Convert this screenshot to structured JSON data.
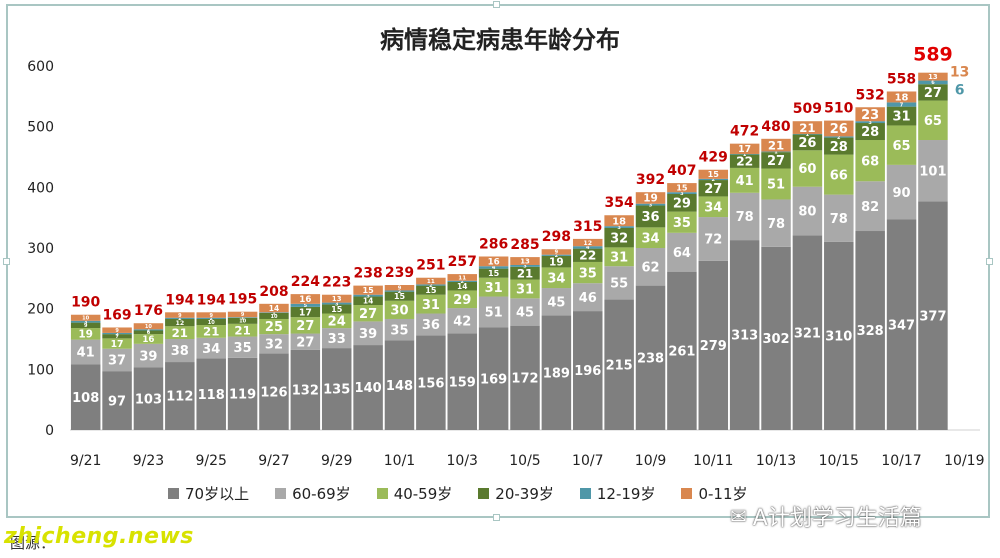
{
  "chart_data": {
    "type": "bar",
    "stacked": true,
    "title": "病情稳定病患年龄分布",
    "categories": [
      "9/21",
      "9/22",
      "9/23",
      "9/24",
      "9/25",
      "9/26",
      "9/27",
      "9/28",
      "9/29",
      "9/30",
      "10/1",
      "10/2",
      "10/3",
      "10/4",
      "10/5",
      "10/6",
      "10/7",
      "10/8",
      "10/9",
      "10/10",
      "10/11",
      "10/12",
      "10/13",
      "10/14",
      "10/15",
      "10/16",
      "10/17",
      "10/18",
      "10/19"
    ],
    "x_tick_labels": [
      "9/21",
      "9/23",
      "9/25",
      "9/27",
      "9/29",
      "10/1",
      "10/3",
      "10/5",
      "10/7",
      "10/9",
      "10/11",
      "10/13",
      "10/15",
      "10/17",
      "10/19"
    ],
    "ylim": [
      0,
      600
    ],
    "yticks": [
      0,
      100,
      200,
      300,
      400,
      500,
      600
    ],
    "grid": false,
    "legend_position": "bottom",
    "totals": [
      190,
      169,
      176,
      194,
      194,
      195,
      208,
      224,
      223,
      238,
      239,
      251,
      257,
      286,
      285,
      298,
      315,
      354,
      392,
      407,
      429,
      472,
      480,
      509,
      510,
      532,
      558,
      589,
      null
    ],
    "series": [
      {
        "name": "70岁以上",
        "color": "#7f7f7f",
        "label_color": "#ffffff",
        "values": [
          108,
          97,
          103,
          112,
          118,
          119,
          126,
          132,
          135,
          140,
          148,
          156,
          159,
          169,
          172,
          189,
          196,
          215,
          238,
          261,
          279,
          313,
          302,
          321,
          310,
          328,
          347,
          377,
          null
        ]
      },
      {
        "name": "60-69岁",
        "color": "#a9a9a9",
        "label_color": "#ffffff",
        "values": [
          41,
          37,
          39,
          38,
          34,
          35,
          32,
          27,
          33,
          39,
          35,
          36,
          42,
          51,
          45,
          45,
          46,
          55,
          62,
          64,
          72,
          78,
          78,
          80,
          78,
          82,
          90,
          101,
          null
        ]
      },
      {
        "name": "40-59岁",
        "color": "#9bbb59",
        "label_color": "#ffffff",
        "values": [
          19,
          17,
          16,
          21,
          21,
          21,
          25,
          27,
          24,
          27,
          30,
          31,
          29,
          31,
          31,
          34,
          35,
          31,
          34,
          35,
          34,
          41,
          51,
          60,
          66,
          68,
          65,
          65,
          null
        ]
      },
      {
        "name": "20-39岁",
        "color": "#5a7a2e",
        "label_color": "#ffffff",
        "values": [
          9,
          7,
          6,
          12,
          10,
          10,
          10,
          17,
          15,
          14,
          15,
          15,
          14,
          15,
          21,
          19,
          22,
          32,
          36,
          29,
          27,
          22,
          27,
          26,
          28,
          28,
          31,
          27,
          null
        ]
      },
      {
        "name": "12-19岁",
        "color": "#4f97a8",
        "label_color": "#ffffff",
        "values": [
          3,
          2,
          2,
          2,
          2,
          1,
          1,
          5,
          3,
          3,
          2,
          2,
          2,
          4,
          3,
          2,
          4,
          3,
          3,
          3,
          2,
          1,
          1,
          1,
          2,
          3,
          7,
          6,
          null
        ]
      },
      {
        "name": "0-11岁",
        "color": "#d9874f",
        "label_color": "#ffffff",
        "values": [
          10,
          9,
          10,
          9,
          9,
          9,
          14,
          16,
          13,
          15,
          9,
          11,
          11,
          16,
          13,
          9,
          12,
          18,
          19,
          15,
          15,
          17,
          21,
          21,
          26,
          23,
          18,
          13,
          null
        ]
      }
    ],
    "highlight_last": {
      "total": "589",
      "side_labels": {
        "0-11岁": "13",
        "12-19岁": "6"
      }
    }
  },
  "legend": {
    "items": [
      "70岁以上",
      "60-69岁",
      "40-59岁",
      "20-39岁",
      "12-19岁",
      "0-11岁"
    ]
  },
  "footer": {
    "watermark_left": "zhicheng.news",
    "source_text": "图源：",
    "watermark_right": "A计划学习生活篇"
  },
  "colors": {
    "total_label": "#c00000",
    "highlight_total": "#e00000",
    "side_label_orange": "#d9874f",
    "side_label_blue": "#4f97a8"
  }
}
